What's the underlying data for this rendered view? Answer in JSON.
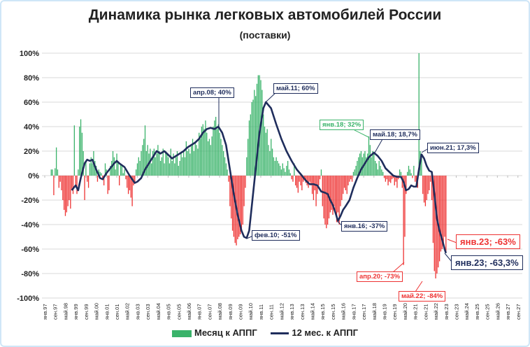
{
  "chart_data": {
    "type": "bar+line",
    "title": "Динамика рынка легковых автомобилей России",
    "subtitle": "(поставки)",
    "ylim": [
      -100,
      100
    ],
    "yticks": [
      "100%",
      "80%",
      "60%",
      "40%",
      "20%",
      "0%",
      "-20%",
      "-40%",
      "-60%",
      "-80%",
      "-100%"
    ],
    "ytick_values": [
      100,
      80,
      60,
      40,
      20,
      0,
      -20,
      -40,
      -60,
      -80,
      -100
    ],
    "xticks": [
      "янв.97",
      "сен.97",
      "май.98",
      "янв.99",
      "сен.99",
      "май.00",
      "янв.01",
      "сен.01",
      "май.02",
      "янв.03",
      "сен.03",
      "май.04",
      "янв.05",
      "сен.05",
      "май.06",
      "янв.07",
      "сен.07",
      "май.08",
      "янв.09",
      "сен.09",
      "май.10",
      "янв.11",
      "сен.11",
      "май.12",
      "янв.13",
      "сен.13",
      "май.14",
      "янв.15",
      "сен.15",
      "май.16",
      "янв.17",
      "сен.17",
      "май.18",
      "янв.19",
      "сен.19",
      "май.20",
      "янв.21",
      "сен.21",
      "май.22",
      "янв.23",
      "сен.23",
      "май.24",
      "янв.25",
      "сен.25",
      "май.26",
      "янв.27",
      "сен.27"
    ],
    "x_start": "янв.97",
    "x_end": "сен.27",
    "grid": true,
    "legend_position": "bottom",
    "colors": {
      "positive": "#3ab36a",
      "negative": "#ee3333",
      "line": "#1f2d5c"
    },
    "series": [
      {
        "name": "Месяц к АППГ",
        "type": "bar",
        "monthly_by_year": {
          "1997": [
            0,
            0,
            0,
            0,
            0,
            5,
            5,
            -16,
            6,
            23,
            5,
            -10
          ],
          "1998": [
            -5,
            -12,
            -20,
            -28,
            -33,
            -30,
            -25,
            -20,
            -27,
            -12,
            -15,
            41
          ],
          "1999": [
            -8,
            -15,
            5,
            40,
            46,
            35,
            20,
            -20,
            12,
            -5,
            -10,
            10
          ],
          "2000": [
            15,
            10,
            20,
            12,
            8,
            -5,
            5,
            3,
            2,
            -3,
            -8,
            10
          ],
          "2001": [
            5,
            -15,
            -12,
            8,
            12,
            20,
            15,
            5,
            18,
            10,
            -8,
            10
          ],
          "2002": [
            8,
            2,
            5,
            -3,
            -10,
            -15,
            -12,
            -18,
            -25,
            -8,
            -5,
            5
          ],
          "2003": [
            10,
            15,
            12,
            20,
            25,
            30,
            41,
            20,
            25,
            18,
            22,
            10
          ],
          "2004": [
            20,
            22,
            15,
            18,
            25,
            20,
            12,
            15,
            22,
            10,
            20,
            18
          ],
          "2005": [
            15,
            10,
            22,
            12,
            18,
            10,
            15,
            20,
            8,
            12,
            18,
            15
          ],
          "2006": [
            20,
            15,
            28,
            20,
            22,
            18,
            25,
            30,
            20,
            28,
            25,
            22
          ],
          "2007": [
            35,
            30,
            40,
            42,
            38,
            45,
            35,
            28,
            30,
            25,
            32,
            40
          ],
          "2008": [
            45,
            48,
            38,
            42,
            35,
            30,
            25,
            20,
            15,
            10,
            5,
            -5
          ],
          "2009": [
            -25,
            -35,
            -45,
            -50,
            -55,
            -57,
            -52,
            -50,
            -48,
            -45,
            -40,
            -25
          ],
          "2010": [
            -10,
            15,
            30,
            45,
            50,
            60,
            62,
            70,
            65,
            75,
            82,
            82
          ],
          "2011": [
            78,
            70,
            50,
            40,
            35,
            38,
            25,
            20,
            30,
            22,
            15,
            12
          ],
          "2012": [
            15,
            12,
            10,
            8,
            5,
            10,
            6,
            3,
            8,
            12,
            5,
            2
          ],
          "2013": [
            -3,
            -5,
            10,
            -8,
            -10,
            -14,
            -5,
            -8,
            -12,
            -5,
            -2,
            -6
          ],
          "2014": [
            -8,
            -10,
            -5,
            -8,
            -15,
            -20,
            -12,
            -25,
            -15,
            -8,
            -3,
            5
          ],
          "2015": [
            -25,
            -35,
            -40,
            -43,
            -40,
            -35,
            -30,
            -28,
            -32,
            -25,
            -30,
            -38
          ],
          "2016": [
            -30,
            -40,
            -25,
            -20,
            -15,
            -10,
            -12,
            -15,
            -8,
            -5,
            -3,
            -5
          ],
          "2017": [
            3,
            5,
            8,
            12,
            15,
            18,
            20,
            15,
            18,
            20,
            15,
            18
          ],
          "2018": [
            32,
            25,
            15,
            20,
            18,
            12,
            10,
            5,
            12,
            8,
            5,
            3
          ],
          "2019": [
            -2,
            -5,
            -3,
            -8,
            -5,
            -6,
            -3,
            -2,
            -8,
            -5,
            -10,
            -3
          ],
          "2020": [
            5,
            3,
            -10,
            -73,
            -50,
            -15,
            3,
            8,
            5,
            2,
            -2,
            8
          ],
          "2021": [
            -5,
            -8,
            -10,
            100,
            20,
            17,
            -15,
            -22,
            -25,
            -20,
            -15,
            -12
          ],
          "2022": [
            -5,
            -20,
            -55,
            -78,
            -84,
            -80,
            -75,
            -70,
            -62,
            -60,
            -55,
            -50
          ],
          "2023": [
            -63
          ]
        }
      },
      {
        "name": "12 мес. к АППГ",
        "type": "line",
        "points": [
          [
            "окт.98",
            -12
          ],
          [
            "янв.99",
            -8
          ],
          [
            "мар.99",
            -12
          ],
          [
            "май.99",
            -2
          ],
          [
            "авг.99",
            10
          ],
          [
            "окт.99",
            13
          ],
          [
            "дек.99",
            12
          ],
          [
            "фев.00",
            13
          ],
          [
            "май.00",
            5
          ],
          [
            "авг.00",
            -2
          ],
          [
            "окт.00",
            -3
          ],
          [
            "янв.01",
            2
          ],
          [
            "апр.01",
            6
          ],
          [
            "июл.01",
            10
          ],
          [
            "сен.01",
            12
          ],
          [
            "ноя.01",
            10
          ],
          [
            "мар.02",
            7
          ],
          [
            "июл.02",
            0
          ],
          [
            "ноя.02",
            -6
          ],
          [
            "янв.03",
            -5
          ],
          [
            "апр.03",
            -2
          ],
          [
            "июл.03",
            5
          ],
          [
            "окт.03",
            10
          ],
          [
            "янв.04",
            15
          ],
          [
            "апр.04",
            20
          ],
          [
            "июл.04",
            18
          ],
          [
            "окт.04",
            20
          ],
          [
            "янв.05",
            17
          ],
          [
            "апр.05",
            14
          ],
          [
            "июл.05",
            16
          ],
          [
            "окт.05",
            18
          ],
          [
            "янв.06",
            20
          ],
          [
            "апр.06",
            23
          ],
          [
            "июл.06",
            25
          ],
          [
            "окт.06",
            27
          ],
          [
            "янв.07",
            30
          ],
          [
            "апр.07",
            35
          ],
          [
            "июл.07",
            38
          ],
          [
            "окт.07",
            39
          ],
          [
            "янв.08",
            38
          ],
          [
            "апр.08",
            40
          ],
          [
            "июл.08",
            35
          ],
          [
            "окт.08",
            25
          ],
          [
            "янв.09",
            5
          ],
          [
            "апр.09",
            -15
          ],
          [
            "июл.09",
            -32
          ],
          [
            "окт.09",
            -45
          ],
          [
            "дек.09",
            -50
          ],
          [
            "фев.10",
            -51
          ],
          [
            "апр.10",
            -45
          ],
          [
            "июн.10",
            -25
          ],
          [
            "сен.10",
            5
          ],
          [
            "дек.10",
            35
          ],
          [
            "мар.11",
            55
          ],
          [
            "май.11",
            60
          ],
          [
            "сен.11",
            55
          ],
          [
            "янв.12",
            42
          ],
          [
            "май.12",
            30
          ],
          [
            "сен.12",
            20
          ],
          [
            "янв.13",
            12
          ],
          [
            "май.13",
            5
          ],
          [
            "сен.13",
            0
          ],
          [
            "дек.13",
            -4
          ],
          [
            "мар.14",
            -7
          ],
          [
            "июн.14",
            -7
          ],
          [
            "сен.14",
            -8
          ],
          [
            "дек.14",
            -13
          ],
          [
            "мар.15",
            -14
          ],
          [
            "май.15",
            -15
          ],
          [
            "июл.15",
            -20
          ],
          [
            "сен.15",
            -24
          ],
          [
            "ноя.15",
            -30
          ],
          [
            "янв.16",
            -37
          ],
          [
            "мар.16",
            -33
          ],
          [
            "май.16",
            -28
          ],
          [
            "июл.16",
            -25
          ],
          [
            "окт.16",
            -20
          ],
          [
            "янв.17",
            -10
          ],
          [
            "апр.17",
            -2
          ],
          [
            "июл.17",
            5
          ],
          [
            "окт.17",
            10
          ],
          [
            "янв.18",
            15
          ],
          [
            "май.18",
            18.7
          ],
          [
            "авг.18",
            16
          ],
          [
            "ноя.18",
            12
          ],
          [
            "фев.19",
            6
          ],
          [
            "май.19",
            3
          ],
          [
            "авг.19",
            0
          ],
          [
            "ноя.19",
            -1
          ],
          [
            "фев.20",
            -1
          ],
          [
            "апр.20",
            -5
          ],
          [
            "июн.20",
            -12
          ],
          [
            "авг.20",
            -11
          ],
          [
            "окт.20",
            -8
          ],
          [
            "дек.20",
            -9
          ],
          [
            "фев.21",
            -9
          ],
          [
            "апр.21",
            5
          ],
          [
            "июн.21",
            17.3
          ],
          [
            "авг.21",
            14
          ],
          [
            "окт.21",
            8
          ],
          [
            "дек.21",
            4
          ],
          [
            "фев.22",
            3
          ],
          [
            "апр.22",
            -15
          ],
          [
            "июн.22",
            -35
          ],
          [
            "авг.22",
            -45
          ],
          [
            "окт.22",
            -52
          ],
          [
            "дек.22",
            -60
          ],
          [
            "янв.23",
            -63.3
          ]
        ]
      }
    ],
    "annotations": [
      {
        "text": "апр.08; 40%",
        "series": "line",
        "color": "#1f2d5c"
      },
      {
        "text": "май.11; 60%",
        "series": "line",
        "color": "#1f2d5c"
      },
      {
        "text": "фев.10; -51%",
        "series": "line",
        "color": "#1f2d5c"
      },
      {
        "text": "янв.18; 32%",
        "series": "bar",
        "color": "#3ab36a"
      },
      {
        "text": "май.18; 18,7%",
        "series": "line",
        "color": "#1f2d5c"
      },
      {
        "text": "янв.16; -37%",
        "series": "line",
        "color": "#1f2d5c"
      },
      {
        "text": "июн.21; 17,3%",
        "series": "line",
        "color": "#1f2d5c"
      },
      {
        "text": "апр.20; -73%",
        "series": "bar",
        "color": "#ee3333"
      },
      {
        "text": "май.22; -84%",
        "series": "bar",
        "color": "#ee3333"
      },
      {
        "text": "янв.23; -63%",
        "series": "bar",
        "color": "#ee3333"
      },
      {
        "text": "янв.23; -63,3%",
        "series": "line",
        "color": "#1f2d5c"
      }
    ],
    "legend": [
      "Месяц к АППГ",
      "12 мес. к АППГ"
    ]
  }
}
